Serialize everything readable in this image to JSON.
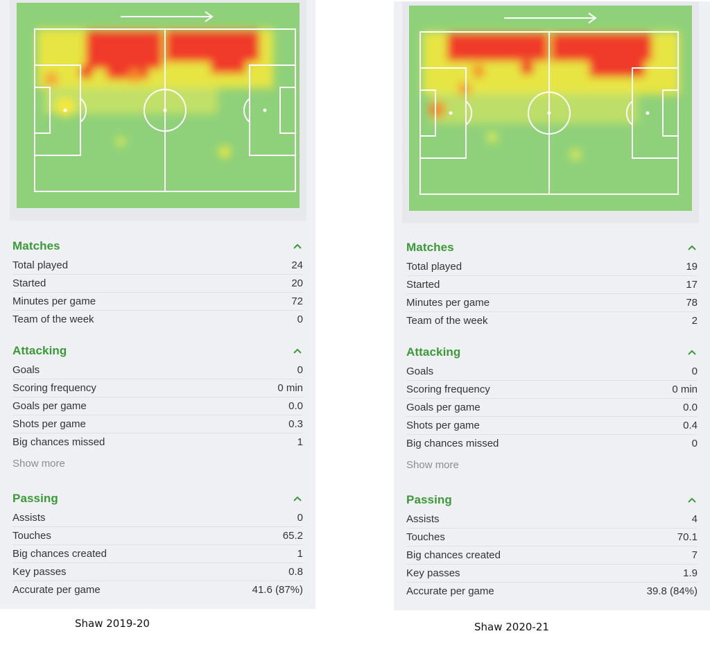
{
  "left": {
    "matches": {
      "title": "Matches",
      "rows": [
        {
          "label": "Total played",
          "value": "24"
        },
        {
          "label": "Started",
          "value": "20"
        },
        {
          "label": "Minutes per game",
          "value": "72"
        },
        {
          "label": "Team of the week",
          "value": "0"
        }
      ]
    },
    "attacking": {
      "title": "Attacking",
      "rows": [
        {
          "label": "Goals",
          "value": "0"
        },
        {
          "label": "Scoring frequency",
          "value": "0 min"
        },
        {
          "label": "Goals per game",
          "value": "0.0"
        },
        {
          "label": "Shots per game",
          "value": "0.3"
        },
        {
          "label": "Big chances missed",
          "value": "1"
        }
      ],
      "show_more": "Show more"
    },
    "passing": {
      "title": "Passing",
      "rows": [
        {
          "label": "Assists",
          "value": "0"
        },
        {
          "label": "Touches",
          "value": "65.2"
        },
        {
          "label": "Big chances created",
          "value": "1"
        },
        {
          "label": "Key passes",
          "value": "0.8"
        },
        {
          "label": "Accurate per game",
          "value": "41.6 (87%)"
        }
      ]
    },
    "caption": "Shaw 2019-20"
  },
  "right": {
    "matches": {
      "title": "Matches",
      "rows": [
        {
          "label": "Total played",
          "value": "19"
        },
        {
          "label": "Started",
          "value": "17"
        },
        {
          "label": "Minutes per game",
          "value": "78"
        },
        {
          "label": "Team of the week",
          "value": "2"
        }
      ]
    },
    "attacking": {
      "title": "Attacking",
      "rows": [
        {
          "label": "Goals",
          "value": "0"
        },
        {
          "label": "Scoring frequency",
          "value": "0 min"
        },
        {
          "label": "Goals per game",
          "value": "0.0"
        },
        {
          "label": "Shots per game",
          "value": "0.4"
        },
        {
          "label": "Big chances missed",
          "value": "0"
        }
      ],
      "show_more": "Show more"
    },
    "passing": {
      "title": "Passing",
      "rows": [
        {
          "label": "Assists",
          "value": "4"
        },
        {
          "label": "Touches",
          "value": "70.1"
        },
        {
          "label": "Big chances created",
          "value": "7"
        },
        {
          "label": "Key passes",
          "value": "1.9"
        },
        {
          "label": "Accurate per game",
          "value": "39.8 (84%)"
        }
      ]
    },
    "caption": "Shaw 2020-21"
  },
  "colors": {
    "section_title": "#3b9a36",
    "pitch": "#8fd17a",
    "heat_high": "#f03a2a",
    "heat_mid": "#f7e93a",
    "panel_bg": "#eef0f3"
  },
  "icons": {
    "direction": "arrow-right-icon",
    "collapse": "chevron-up-icon"
  }
}
